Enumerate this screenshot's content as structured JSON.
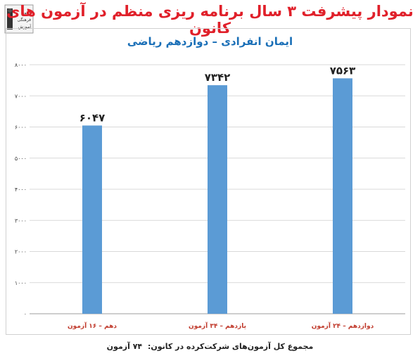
{
  "header": {
    "title": "نمودار پیشرفت ۳ سال برنامه ریزی منظم در آزمون های کانون",
    "logo_text": [
      "کانون",
      "فرهنگی",
      "آموزش"
    ]
  },
  "chart_data": {
    "type": "bar",
    "title": "ایمان انفرادی – دوازدهم ریاضی",
    "categories": [
      "دهم – ۱۶ آزمون",
      "یازدهم – ۳۴ آزمون",
      "دوازدهم – ۲۴ آزمون"
    ],
    "values": [
      6047,
      7342,
      7563
    ],
    "value_labels": [
      "۶۰۴۷",
      "۷۳۴۲",
      "۷۵۶۳"
    ],
    "ylim": [
      0,
      8000
    ],
    "yticks": [
      0,
      1000,
      2000,
      3000,
      4000,
      5000,
      6000,
      7000,
      8000
    ],
    "ytick_labels": [
      "۰",
      "۱۰۰۰",
      "۲۰۰۰",
      "۳۰۰۰",
      "۴۰۰۰",
      "۵۰۰۰",
      "۶۰۰۰",
      "۷۰۰۰",
      "۸۰۰۰"
    ],
    "grid": true,
    "xlabel": "",
    "ylabel": "",
    "bar_color": "#5b9bd5",
    "category_label_color": "#c0392b"
  },
  "footer": {
    "label": "مجموع کل آزمون‌های شرکت‌کرده در کانون:",
    "value": "۷۴ آزمون"
  }
}
